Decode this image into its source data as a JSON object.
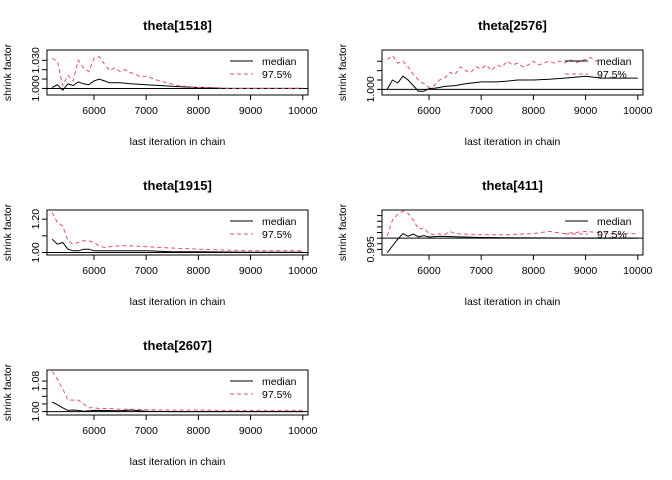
{
  "chart_data": [
    {
      "type": "line",
      "title": "theta[1518]",
      "xlabel": "last iteration in chain",
      "ylabel": "shrink factor",
      "xlim": [
        5100,
        10100
      ],
      "ylim": [
        0.993,
        1.041
      ],
      "x_ticks": [
        6000,
        7000,
        8000,
        9000,
        10000
      ],
      "y_ticks": [
        1.0,
        1.01,
        1.02,
        1.03
      ],
      "y_tick_labels": [
        "1.000",
        "",
        "",
        "1.030"
      ],
      "legend": [
        "median",
        "97.5%"
      ],
      "legend_position": "top-right",
      "hline": 1,
      "series": [
        {
          "name": "median",
          "color": "#000000",
          "dash": "solid",
          "x": [
            5200,
            5300,
            5400,
            5500,
            5600,
            5700,
            5800,
            5900,
            6000,
            6100,
            6200,
            6300,
            6500,
            6700,
            7000,
            7300,
            7600,
            8000,
            8500,
            9000,
            9500,
            10000
          ],
          "y": [
            1.001,
            1.004,
            0.998,
            1.005,
            1.003,
            1.007,
            1.005,
            1.004,
            1.008,
            1.01,
            1.008,
            1.006,
            1.006,
            1.005,
            1.004,
            1.003,
            1.002,
            1.001,
            1.0,
            1.0,
            1.0,
            1.0
          ]
        },
        {
          "name": "97.5%",
          "color": "#DF536B",
          "dash": "dashed",
          "x": [
            5200,
            5300,
            5400,
            5500,
            5600,
            5700,
            5800,
            5900,
            6000,
            6100,
            6200,
            6300,
            6400,
            6500,
            6600,
            6700,
            6800,
            6900,
            7000,
            7200,
            7400,
            7600,
            7800,
            8000,
            8300,
            8600,
            9000,
            9500,
            10000
          ],
          "y": [
            1.032,
            1.029,
            1.003,
            1.014,
            1.008,
            1.03,
            1.022,
            1.018,
            1.032,
            1.034,
            1.026,
            1.019,
            1.022,
            1.018,
            1.02,
            1.017,
            1.015,
            1.012,
            1.013,
            1.009,
            1.006,
            1.003,
            1.002,
            1.001,
            1.001,
            1.0,
            1.0,
            1.0,
            1.0
          ]
        }
      ]
    },
    {
      "type": "line",
      "title": "theta[2576]",
      "xlabel": "last iteration in chain",
      "ylabel": "shrink factor",
      "xlim": [
        5100,
        10100
      ],
      "ylim": [
        0.9985,
        1.0105
      ],
      "x_ticks": [
        6000,
        7000,
        8000,
        9000,
        10000
      ],
      "y_ticks": [
        1.0,
        1.0025,
        1.005,
        1.0075
      ],
      "y_tick_labels": [
        "1.000",
        "",
        "",
        ""
      ],
      "legend": [
        "median",
        "97.5%"
      ],
      "legend_position": "top-right",
      "hline": 1,
      "series": [
        {
          "name": "median",
          "color": "#000000",
          "dash": "solid",
          "x": [
            5200,
            5300,
            5400,
            5500,
            5600,
            5700,
            5800,
            5900,
            6000,
            6100,
            6200,
            6300,
            6500,
            6700,
            7000,
            7300,
            7500,
            7700,
            8000,
            8300,
            8600,
            9000,
            9300,
            9600,
            10000
          ],
          "y": [
            1.0,
            1.0025,
            1.0017,
            1.0035,
            1.0025,
            1.001,
            0.9995,
            0.9995,
            1.0002,
            1.0003,
            1.0005,
            1.0008,
            1.001,
            1.0015,
            1.002,
            1.002,
            1.0022,
            1.0025,
            1.0025,
            1.0027,
            1.003,
            1.0035,
            1.003,
            1.003,
            1.003
          ]
        },
        {
          "name": "97.5%",
          "color": "#DF536B",
          "dash": "dashed",
          "x": [
            5200,
            5300,
            5400,
            5500,
            5600,
            5700,
            5800,
            5900,
            6000,
            6100,
            6200,
            6300,
            6400,
            6500,
            6600,
            6700,
            6800,
            6900,
            7000,
            7100,
            7200,
            7300,
            7400,
            7500,
            7600,
            7700,
            7800,
            7900,
            8000,
            8100,
            8200,
            8300,
            8400,
            8500,
            8600,
            8700,
            8800,
            8900,
            9000,
            9100,
            9200,
            9300
          ],
          "y": [
            1.008,
            1.009,
            1.007,
            1.0075,
            1.006,
            1.004,
            1.0025,
            1.0015,
            1.0005,
            1.001,
            1.0025,
            1.003,
            1.0045,
            1.004,
            1.006,
            1.005,
            1.0045,
            1.006,
            1.0055,
            1.0065,
            1.005,
            1.0065,
            1.006,
            1.0075,
            1.0065,
            1.007,
            1.006,
            1.0065,
            1.0075,
            1.0065,
            1.007,
            1.0075,
            1.007,
            1.0075,
            1.007,
            1.008,
            1.007,
            1.0075,
            1.008,
            1.0085,
            1.0075,
            1.008
          ]
        }
      ]
    },
    {
      "type": "line",
      "title": "theta[1915]",
      "xlabel": "last iteration in chain",
      "ylabel": "shrink factor",
      "xlim": [
        5100,
        10100
      ],
      "ylim": [
        0.985,
        1.255
      ],
      "x_ticks": [
        6000,
        7000,
        8000,
        9000,
        10000
      ],
      "y_ticks": [
        1.0,
        1.1,
        1.2
      ],
      "y_tick_labels": [
        "1.00",
        "",
        "1.20"
      ],
      "legend": [
        "median",
        "97.5%"
      ],
      "legend_position": "top-right",
      "hline": 1,
      "series": [
        {
          "name": "median",
          "color": "#000000",
          "dash": "solid",
          "x": [
            5200,
            5300,
            5400,
            5500,
            5600,
            5700,
            5800,
            5900,
            6000,
            6200,
            6500,
            7000,
            7500,
            8000,
            8500,
            9000,
            9500,
            10000
          ],
          "y": [
            1.08,
            1.05,
            1.06,
            1.02,
            1.01,
            1.01,
            1.02,
            1.02,
            1.01,
            1.01,
            1.01,
            1.01,
            1.005,
            1.005,
            1.003,
            1.002,
            1.001,
            1.001
          ]
        },
        {
          "name": "97.5%",
          "color": "#DF536B",
          "dash": "dashed",
          "x": [
            5200,
            5300,
            5400,
            5500,
            5600,
            5700,
            5800,
            5900,
            6000,
            6100,
            6200,
            6300,
            6500,
            6700,
            7000,
            7300,
            7600,
            8000,
            8500,
            9000,
            9500,
            10000
          ],
          "y": [
            1.24,
            1.18,
            1.16,
            1.07,
            1.05,
            1.06,
            1.07,
            1.07,
            1.06,
            1.04,
            1.03,
            1.035,
            1.04,
            1.04,
            1.035,
            1.03,
            1.025,
            1.02,
            1.015,
            1.01,
            1.01,
            1.01
          ]
        }
      ]
    },
    {
      "type": "line",
      "title": "theta[411]",
      "xlabel": "last iteration in chain",
      "ylabel": "shrink factor",
      "xlim": [
        5100,
        10100
      ],
      "ylim": [
        0.9925,
        1.0125
      ],
      "x_ticks": [
        6000,
        7000,
        8000,
        9000,
        10000
      ],
      "y_ticks": [
        0.995,
        0.9975,
        1.0,
        1.0025,
        1.005,
        1.0075,
        1.01
      ],
      "y_tick_labels": [
        "0.995",
        "",
        "",
        "",
        "",
        "",
        ""
      ],
      "legend": [
        "median",
        "97.5%"
      ],
      "legend_position": "top-right",
      "hline": 1,
      "series": [
        {
          "name": "median",
          "color": "#000000",
          "dash": "solid",
          "x": [
            5200,
            5300,
            5400,
            5500,
            5600,
            5700,
            5800,
            5900,
            6000,
            6200,
            6500,
            7000,
            7500,
            8000,
            9000,
            10000
          ],
          "y": [
            0.9935,
            0.9965,
            0.9995,
            1.002,
            1.0008,
            1.0018,
            1.0006,
            1.0011,
            1.0005,
            1.0008,
            1.0006,
            1.0003,
            1.0002,
            1.0001,
            1.0,
            1.0
          ]
        },
        {
          "name": "97.5%",
          "color": "#DF536B",
          "dash": "dashed",
          "x": [
            5200,
            5300,
            5400,
            5500,
            5600,
            5700,
            5800,
            5900,
            6000,
            6100,
            6200,
            6300,
            6400,
            6500,
            6700,
            7000,
            7500,
            8000,
            8300,
            8600,
            9000,
            9500,
            10000
          ],
          "y": [
            1.001,
            1.008,
            1.0105,
            1.012,
            1.011,
            1.008,
            1.004,
            1.0045,
            1.002,
            1.0015,
            1.002,
            1.0015,
            1.003,
            1.002,
            1.0018,
            1.0015,
            1.0015,
            1.002,
            1.003,
            1.002,
            1.003,
            1.002,
            1.002
          ]
        }
      ]
    },
    {
      "type": "line",
      "title": "theta[2607]",
      "xlabel": "last iteration in chain",
      "ylabel": "shrink factor",
      "xlim": [
        5100,
        10100
      ],
      "ylim": [
        0.991,
        1.109
      ],
      "x_ticks": [
        6000,
        7000,
        8000,
        9000,
        10000
      ],
      "y_ticks": [
        1.0,
        1.02,
        1.04,
        1.06,
        1.08
      ],
      "y_tick_labels": [
        "1.00",
        "",
        "",
        "",
        "1.08"
      ],
      "legend": [
        "median",
        "97.5%"
      ],
      "legend_position": "top-right",
      "hline": 1,
      "series": [
        {
          "name": "median",
          "color": "#000000",
          "dash": "solid",
          "x": [
            5200,
            5300,
            5400,
            5500,
            5600,
            5700,
            5800,
            6000,
            6500,
            6700,
            7000,
            7500,
            8000,
            9000,
            10000
          ],
          "y": [
            1.025,
            1.018,
            1.01,
            1.003,
            1.004,
            1.003,
            1.001,
            1.003,
            1.002,
            1.004,
            1.001,
            1.0,
            1.0,
            1.0,
            1.0
          ]
        },
        {
          "name": "97.5%",
          "color": "#DF536B",
          "dash": "dashed",
          "x": [
            5200,
            5300,
            5400,
            5500,
            5600,
            5700,
            5800,
            5900,
            6000,
            6100,
            6300,
            6500,
            6700,
            7000,
            7300,
            7600,
            8000,
            8500,
            9000,
            9500,
            10000
          ],
          "y": [
            1.105,
            1.085,
            1.06,
            1.03,
            1.03,
            1.03,
            1.02,
            1.01,
            1.01,
            1.008,
            1.008,
            1.006,
            1.006,
            1.005,
            1.004,
            1.004,
            1.004,
            1.003,
            1.003,
            1.003,
            1.003
          ]
        }
      ]
    }
  ]
}
